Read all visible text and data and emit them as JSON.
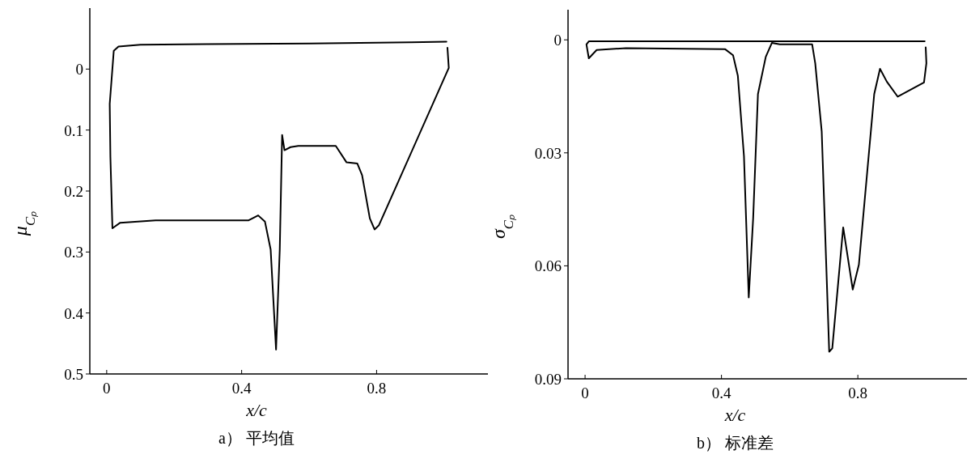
{
  "chart_data": [
    {
      "type": "line",
      "title": "a） 平均值",
      "xlabel": "x/c",
      "ylabel": "μ$_{Cₚ}$",
      "xlim": [
        -0.05,
        1.13
      ],
      "ylim": [
        0.5,
        -0.1
      ],
      "xticks": [
        0,
        0.4,
        0.8
      ],
      "yticks": [
        0,
        0.1,
        0.2,
        0.3,
        0.4,
        0.5
      ],
      "series": [
        {
          "color": "#000000",
          "x": [
            1.007,
            0.9,
            0.6,
            0.3,
            0.1,
            0.035,
            0.021,
            0.009,
            0.011,
            0.017,
            0.04,
            0.145,
            0.421,
            0.449,
            0.469,
            0.486,
            0.502,
            0.513,
            0.52,
            0.527,
            0.545,
            0.568,
            0.679,
            0.711,
            0.743,
            0.757,
            0.78,
            0.794,
            0.807,
            1.014,
            1.01
          ],
          "values": [
            -0.045,
            -0.044,
            -0.042,
            -0.041,
            -0.04,
            -0.037,
            -0.03,
            0.057,
            0.144,
            0.261,
            0.252,
            0.248,
            0.248,
            0.24,
            0.25,
            0.296,
            0.46,
            0.296,
            0.108,
            0.133,
            0.128,
            0.126,
            0.126,
            0.153,
            0.155,
            0.174,
            0.245,
            0.263,
            0.256,
            -0.002,
            -0.035
          ]
        }
      ]
    },
    {
      "type": "line",
      "title": "b） 标准差",
      "xlabel": "x/c",
      "ylabel": "σ$_{Cₚ}$",
      "xlim": [
        -0.05,
        1.12
      ],
      "ylim": [
        0.09,
        -0.008
      ],
      "xticks": [
        0,
        0.4,
        0.8
      ],
      "yticks": [
        0,
        0.03,
        0.06,
        0.09
      ],
      "series": [
        {
          "color": "#000000",
          "x": [
            0.996,
            0.994,
            0.5,
            0.011,
            0.004,
            0.011,
            0.034,
            0.12,
            0.411,
            0.434,
            0.448,
            0.466,
            0.48,
            0.493,
            0.507,
            0.53,
            0.548,
            0.571,
            0.666,
            0.675,
            0.694,
            0.716,
            0.725,
            0.757,
            0.785,
            0.803,
            0.848,
            0.865,
            0.885,
            0.917,
            0.994,
            1.001,
            0.999
          ],
          "values": [
            0.0004,
            0.0004,
            0.0004,
            0.0004,
            0.0012,
            0.0049,
            0.0027,
            0.0022,
            0.0025,
            0.0041,
            0.0095,
            0.0309,
            0.0684,
            0.0473,
            0.0144,
            0.0045,
            0.0008,
            0.0012,
            0.0012,
            0.0062,
            0.0243,
            0.0828,
            0.0819,
            0.0498,
            0.0663,
            0.0597,
            0.0144,
            0.0077,
            0.0111,
            0.0151,
            0.0113,
            0.0062,
            0.002
          ]
        }
      ]
    }
  ]
}
